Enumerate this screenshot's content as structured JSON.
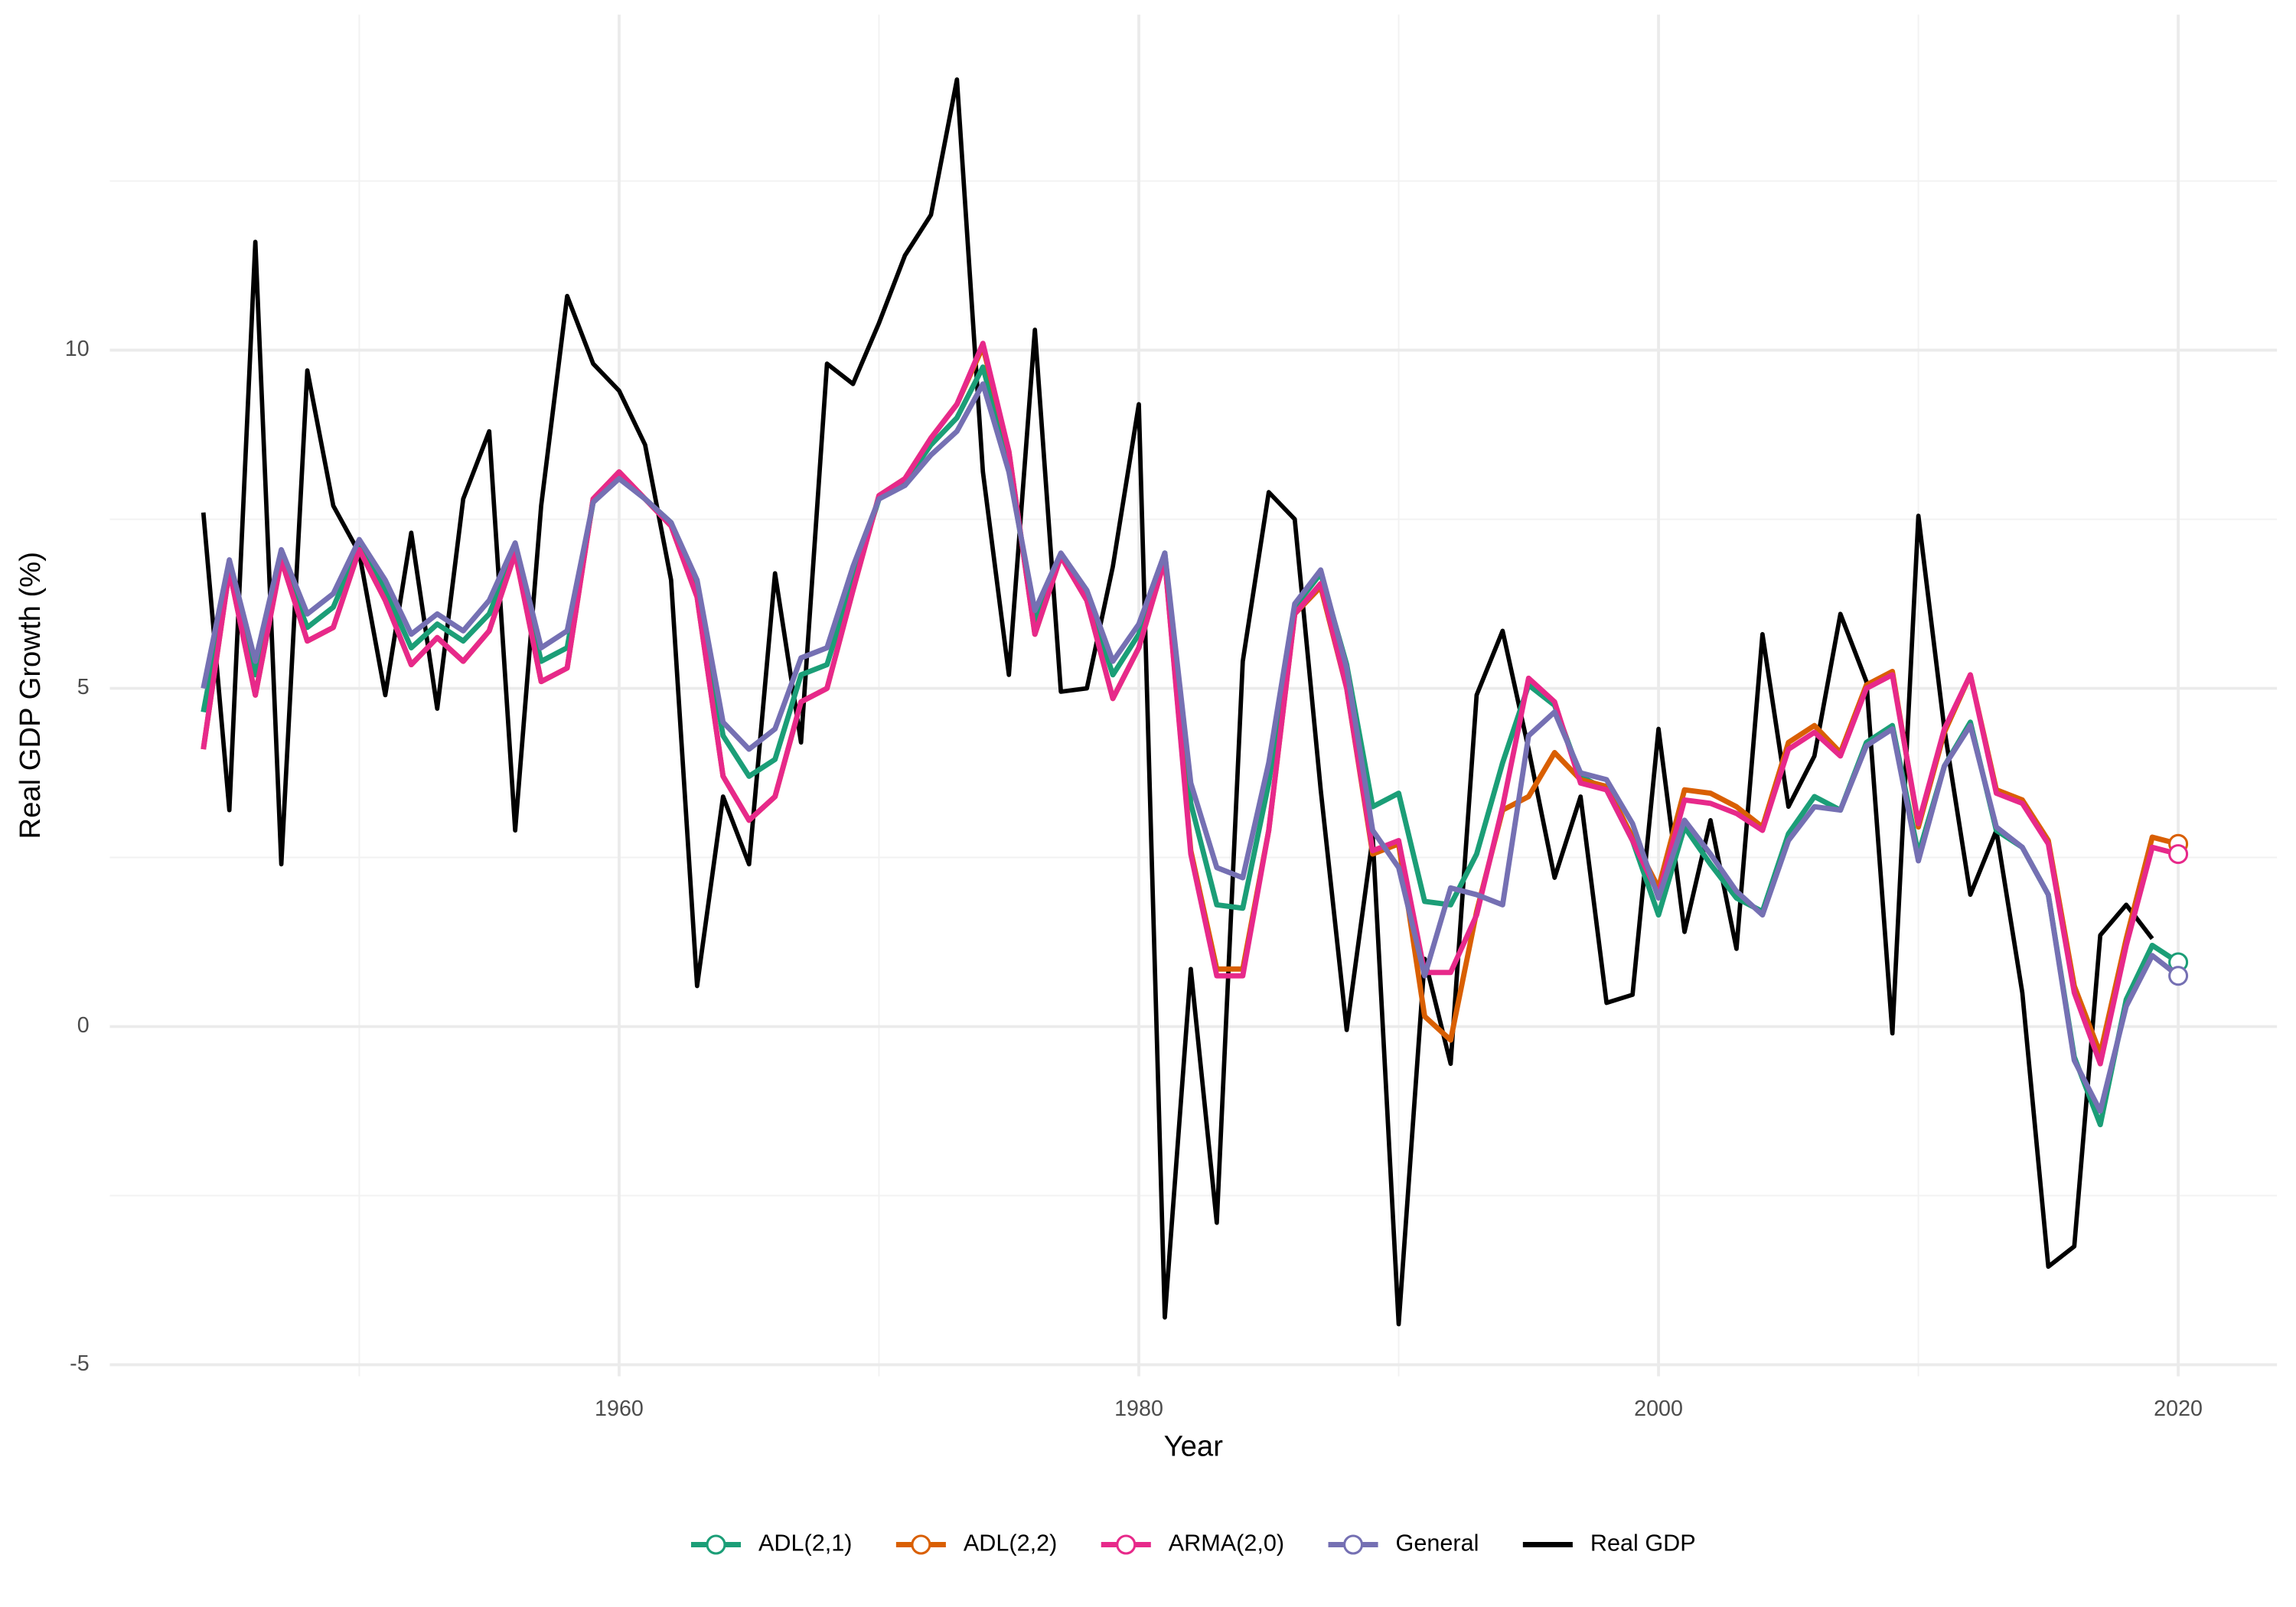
{
  "chart_data": {
    "type": "line",
    "x_label": "Year",
    "y_label": "Real GDP Growth (%)",
    "x": [
      1944,
      1945,
      1946,
      1947,
      1948,
      1949,
      1950,
      1951,
      1952,
      1953,
      1954,
      1955,
      1956,
      1957,
      1958,
      1959,
      1960,
      1961,
      1962,
      1963,
      1964,
      1965,
      1966,
      1967,
      1968,
      1969,
      1970,
      1971,
      1972,
      1973,
      1974,
      1975,
      1976,
      1977,
      1978,
      1979,
      1980,
      1981,
      1982,
      1983,
      1984,
      1985,
      1986,
      1987,
      1988,
      1989,
      1990,
      1991,
      1992,
      1993,
      1994,
      1995,
      1996,
      1997,
      1998,
      1999,
      2000,
      2001,
      2002,
      2003,
      2004,
      2005,
      2006,
      2007,
      2008,
      2009,
      2010,
      2011,
      2012,
      2013,
      2014,
      2015,
      2016,
      2017,
      2018,
      2019,
      2020
    ],
    "series": [
      {
        "name": "Real GDP",
        "color": "#000000",
        "end_marker": false,
        "values": [
          7.6,
          3.2,
          11.6,
          2.4,
          9.7,
          7.7,
          7.0,
          4.9,
          7.3,
          4.7,
          7.8,
          8.8,
          2.9,
          7.7,
          10.8,
          9.8,
          9.4,
          8.6,
          6.6,
          0.6,
          3.4,
          2.4,
          6.7,
          4.2,
          9.8,
          9.5,
          10.4,
          11.4,
          12.0,
          14.0,
          8.2,
          5.2,
          10.3,
          4.95,
          5.0,
          6.8,
          9.2,
          -4.3,
          0.85,
          -2.9,
          5.4,
          7.9,
          7.5,
          3.5,
          -0.05,
          2.8,
          -4.4,
          1.0,
          -0.55,
          4.9,
          5.85,
          4.1,
          2.2,
          3.4,
          0.35,
          0.47,
          4.4,
          1.4,
          3.05,
          1.15,
          5.8,
          3.25,
          4.0,
          6.1,
          5.1,
          -0.1,
          7.55,
          4.4,
          1.95,
          2.9,
          0.5,
          -3.55,
          -3.25,
          1.35,
          1.8,
          1.3,
          null
        ]
      },
      {
        "name": "ADL(2,1)",
        "color": "#1b9e77",
        "end_marker": true,
        "values": [
          4.65,
          6.7,
          5.2,
          6.9,
          5.9,
          6.2,
          7.1,
          6.45,
          5.6,
          5.95,
          5.7,
          6.1,
          7.05,
          5.4,
          5.6,
          7.75,
          8.15,
          7.8,
          7.45,
          6.5,
          4.3,
          3.7,
          3.95,
          5.2,
          5.35,
          6.6,
          7.8,
          8.05,
          8.6,
          9.0,
          9.75,
          8.3,
          6.0,
          6.95,
          6.4,
          5.2,
          5.8,
          7.0,
          3.3,
          1.8,
          1.75,
          3.6,
          6.2,
          6.7,
          5.35,
          3.25,
          3.45,
          1.85,
          1.8,
          2.55,
          3.9,
          5.05,
          4.75,
          3.7,
          3.5,
          2.75,
          1.65,
          2.95,
          2.4,
          1.9,
          1.7,
          2.85,
          3.4,
          3.2,
          4.2,
          4.45,
          2.55,
          3.85,
          4.5,
          2.9,
          2.65,
          1.95,
          -0.45,
          -1.45,
          0.4,
          1.2,
          0.95
        ]
      },
      {
        "name": "ADL(2,2)",
        "color": "#d95f02",
        "end_marker": true,
        "values": [
          4.1,
          6.75,
          4.9,
          6.9,
          5.7,
          5.9,
          7.05,
          6.3,
          5.35,
          5.75,
          5.4,
          5.85,
          7.0,
          5.1,
          5.3,
          7.8,
          8.2,
          7.8,
          7.4,
          6.35,
          3.7,
          3.05,
          3.4,
          4.8,
          5.0,
          6.45,
          7.85,
          8.1,
          8.7,
          9.2,
          10.05,
          8.5,
          5.8,
          6.95,
          6.3,
          4.85,
          5.6,
          6.9,
          2.6,
          0.85,
          0.85,
          2.9,
          6.1,
          6.5,
          5.0,
          2.55,
          2.7,
          0.15,
          -0.2,
          1.7,
          3.2,
          3.4,
          4.05,
          3.65,
          3.55,
          2.8,
          2.05,
          3.5,
          3.45,
          3.25,
          2.95,
          4.2,
          4.45,
          4.05,
          5.05,
          5.25,
          2.95,
          4.35,
          5.2,
          3.5,
          3.35,
          2.75,
          0.6,
          -0.4,
          1.3,
          2.8,
          2.7
        ]
      },
      {
        "name": "ARMA(2,0)",
        "color": "#e7298a",
        "end_marker": true,
        "values": [
          4.1,
          6.75,
          4.9,
          6.9,
          5.7,
          5.9,
          7.05,
          6.3,
          5.35,
          5.75,
          5.4,
          5.85,
          7.0,
          5.1,
          5.3,
          7.8,
          8.2,
          7.8,
          7.4,
          6.35,
          3.7,
          3.05,
          3.4,
          4.8,
          5.0,
          6.45,
          7.85,
          8.1,
          8.7,
          9.2,
          10.1,
          8.5,
          5.8,
          6.95,
          6.3,
          4.85,
          5.6,
          6.9,
          2.55,
          0.75,
          0.75,
          2.9,
          6.1,
          6.55,
          5.0,
          2.6,
          2.75,
          0.8,
          0.8,
          1.65,
          3.25,
          5.15,
          4.8,
          3.6,
          3.5,
          2.75,
          1.95,
          3.35,
          3.3,
          3.15,
          2.9,
          4.1,
          4.35,
          4.0,
          5.0,
          5.2,
          3.0,
          4.4,
          5.2,
          3.45,
          3.3,
          2.7,
          0.5,
          -0.55,
          1.2,
          2.65,
          2.55
        ]
      },
      {
        "name": "General",
        "color": "#7570b3",
        "end_marker": true,
        "values": [
          5.0,
          6.9,
          5.4,
          7.05,
          6.1,
          6.4,
          7.2,
          6.6,
          5.8,
          6.1,
          5.85,
          6.3,
          7.15,
          5.6,
          5.85,
          7.75,
          8.1,
          7.8,
          7.45,
          6.6,
          4.5,
          4.1,
          4.4,
          5.45,
          5.6,
          6.8,
          7.8,
          8.0,
          8.45,
          8.8,
          9.5,
          8.2,
          6.15,
          7.0,
          6.45,
          5.4,
          5.95,
          7.0,
          3.6,
          2.35,
          2.2,
          3.9,
          6.25,
          6.75,
          5.3,
          2.9,
          2.35,
          0.75,
          2.05,
          1.95,
          1.8,
          4.3,
          4.65,
          3.75,
          3.65,
          3.0,
          1.9,
          3.05,
          2.55,
          2.0,
          1.65,
          2.75,
          3.25,
          3.2,
          4.15,
          4.4,
          2.45,
          3.85,
          4.45,
          2.95,
          2.65,
          1.95,
          -0.5,
          -1.25,
          0.3,
          1.05,
          0.75
        ]
      }
    ],
    "legend_order": [
      1,
      2,
      3,
      4,
      0
    ],
    "legend_position": "bottom",
    "xlim": [
      1940.4,
      2023.8
    ],
    "ylim": [
      -5.17,
      14.96
    ],
    "xticks": [
      1960,
      1980,
      2000,
      2020
    ],
    "x_minor_ticks": [
      1950,
      1970,
      1990,
      2010
    ],
    "yticks": [
      -5,
      0,
      5,
      10
    ],
    "y_minor_ticks": [
      -2.5,
      2.5,
      7.5,
      12.5
    ],
    "grid": true
  }
}
